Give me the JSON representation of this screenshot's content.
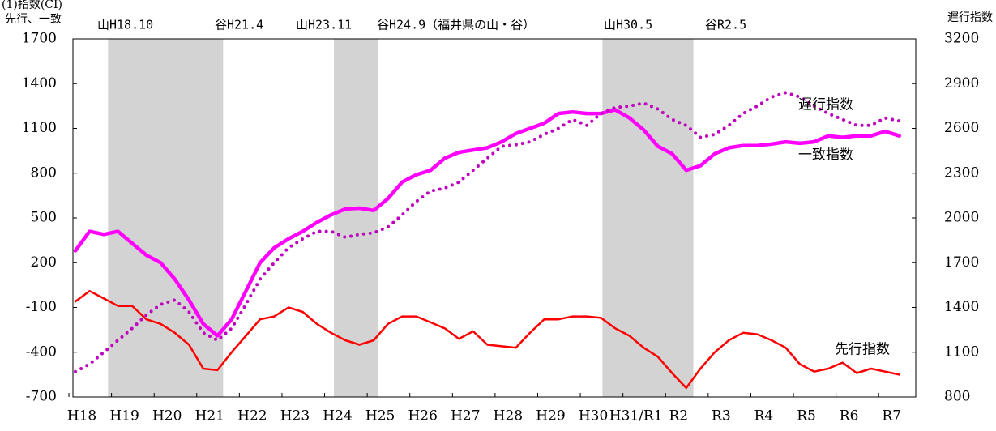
{
  "chart_data": {
    "type": "line",
    "title": "(1)指数(CI)",
    "y_label": "先行、一致",
    "y2_label": "遅行指数",
    "annotations": [
      "山H18.10",
      "谷H21.4",
      "山H23.11",
      "谷H24.9（福井県の山・谷）",
      "山H30.5",
      "谷R2.5"
    ],
    "shaded": [
      [
        2.3,
        10.4
      ],
      [
        18.2,
        21.3
      ],
      [
        37.1,
        43.5
      ]
    ],
    "categories": [
      "H18",
      null,
      null,
      "H19",
      null,
      null,
      "H20",
      null,
      null,
      "H21",
      null,
      null,
      "H22",
      null,
      null,
      "H23",
      null,
      null,
      "H24",
      null,
      null,
      "H25",
      null,
      null,
      "H26",
      null,
      null,
      "H27",
      null,
      null,
      "H28",
      null,
      null,
      "H29",
      null,
      null,
      "H30",
      null,
      null,
      "H31/R1",
      null,
      null,
      "R2",
      null,
      null,
      "R3",
      null,
      null,
      "R4",
      null,
      null,
      "R5",
      null,
      null,
      "R6",
      null,
      null,
      "R7",
      null
    ],
    "series": [
      {
        "name": "一致指数",
        "color": "#ff00ff",
        "values": [
          280,
          410,
          390,
          410,
          330,
          250,
          200,
          90,
          -50,
          -210,
          -290,
          -180,
          10,
          200,
          300,
          360,
          410,
          470,
          520,
          560,
          565,
          550,
          630,
          740,
          790,
          820,
          900,
          940,
          955,
          970,
          1010,
          1065,
          1100,
          1135,
          1200,
          1210,
          1200,
          1200,
          1225,
          1170,
          1090,
          980,
          930,
          820,
          850,
          930,
          970,
          985,
          985,
          995,
          1010,
          1000,
          1010,
          1050,
          1040,
          1050,
          1050,
          1080,
          1050
        ]
      },
      {
        "name": "先行指数",
        "color": "#ff0000",
        "values": [
          -60,
          10,
          -40,
          -90,
          -90,
          -180,
          -210,
          -270,
          -350,
          -510,
          -520,
          -400,
          -290,
          -180,
          -160,
          -100,
          -130,
          -210,
          -270,
          -320,
          -350,
          -320,
          -210,
          -160,
          -160,
          -200,
          -240,
          -310,
          -260,
          -350,
          -360,
          -370,
          -270,
          -180,
          -180,
          -160,
          -160,
          -170,
          -240,
          -290,
          -370,
          -430,
          -540,
          -640,
          -510,
          -400,
          -320,
          -270,
          -280,
          -320,
          -370,
          -480,
          -530,
          -510,
          -470,
          -540,
          -510,
          -530,
          -550
        ]
      },
      {
        "name": "遅行指数",
        "color": "#c000c0",
        "axis": "y2",
        "dashed": true,
        "values": [
          970,
          1020,
          1100,
          1180,
          1260,
          1350,
          1420,
          1450,
          1370,
          1230,
          1180,
          1260,
          1420,
          1590,
          1700,
          1800,
          1860,
          1910,
          1910,
          1870,
          1890,
          1900,
          1940,
          2020,
          2110,
          2180,
          2200,
          2240,
          2320,
          2400,
          2480,
          2490,
          2510,
          2560,
          2600,
          2660,
          2620,
          2700,
          2740,
          2750,
          2770,
          2730,
          2660,
          2620,
          2540,
          2560,
          2620,
          2700,
          2750,
          2810,
          2840,
          2810,
          2750,
          2700,
          2660,
          2620,
          2620,
          2670,
          2650
        ]
      }
    ],
    "ylim": [
      -700,
      1700
    ],
    "yticks": [
      -700,
      -400,
      -100,
      200,
      500,
      800,
      1100,
      1400,
      1700
    ],
    "y2lim": [
      800,
      3200
    ],
    "y2ticks": [
      800,
      1100,
      1400,
      1700,
      2000,
      2300,
      2600,
      2900,
      3200
    ],
    "grid": false
  }
}
